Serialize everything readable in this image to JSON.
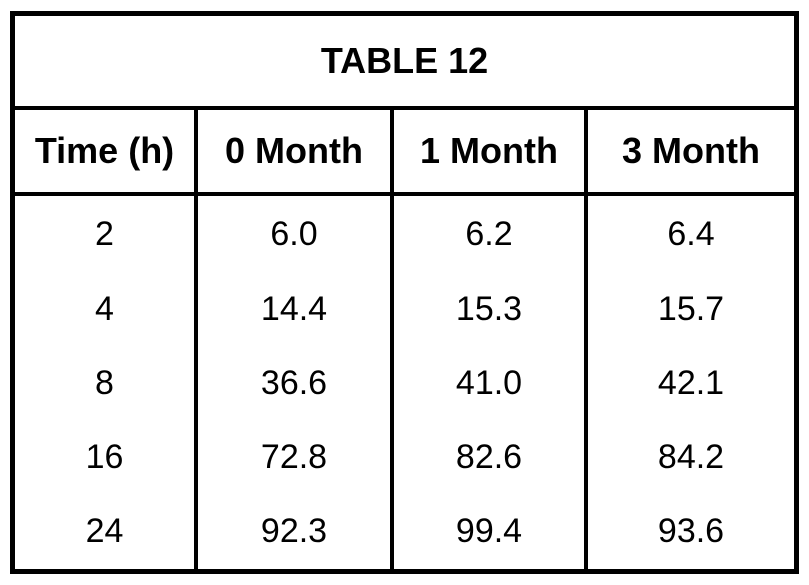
{
  "table": {
    "title": "TABLE 12",
    "headers": [
      "Time (h)",
      "0 Month",
      "1 Month",
      "3 Month"
    ],
    "rows": [
      [
        "2",
        "6.0",
        "6.2",
        "6.4"
      ],
      [
        "4",
        "14.4",
        "15.3",
        "15.7"
      ],
      [
        "8",
        "36.6",
        "41.0",
        "42.1"
      ],
      [
        "16",
        "72.8",
        "82.6",
        "84.2"
      ],
      [
        "24",
        "92.3",
        "99.4",
        "93.6"
      ]
    ]
  }
}
